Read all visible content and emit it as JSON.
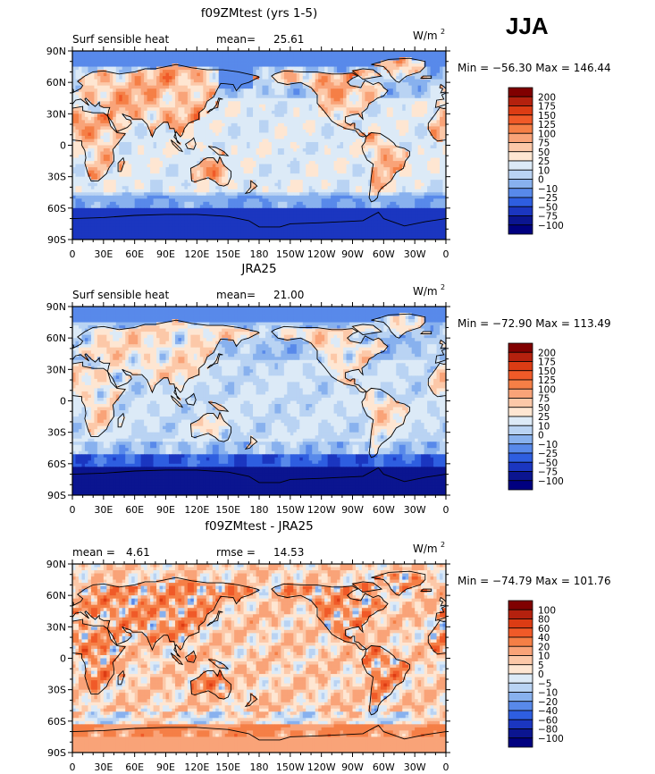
{
  "season": "JJA",
  "colors": {
    "land_outline": "#000000",
    "frame": "#000000"
  },
  "chart_data": [
    {
      "type": "heatmap",
      "title": "f09ZMtest (yrs 1-5)",
      "left_label": "Surf sensible heat",
      "stat1_label": "mean=",
      "stat1_value": "25.61",
      "units": "W/m",
      "units_sup": "2",
      "minmax": "Min = −56.30  Max = 146.44",
      "xticks": [
        "0",
        "30E",
        "60E",
        "90E",
        "120E",
        "150E",
        "180",
        "150W",
        "120W",
        "90W",
        "60W",
        "30W",
        "0"
      ],
      "yticks": [
        "90N",
        "60N",
        "30N",
        "0",
        "30S",
        "60S",
        "90S"
      ],
      "xlim": [
        0,
        360
      ],
      "ylim": [
        -90,
        90
      ],
      "colorbar_levels": [
        "200",
        "175",
        "150",
        "125",
        "100",
        "75",
        "50",
        "25",
        "10",
        "0",
        "−10",
        "−25",
        "−50",
        "−75",
        "−100"
      ],
      "colorbar_colors": [
        "#800000",
        "#b4210e",
        "#dc3c14",
        "#f05a28",
        "#f57f46",
        "#f9a378",
        "#fcc8a8",
        "#fee6d2",
        "#dceaf7",
        "#b9d3f3",
        "#88b1ee",
        "#5889ea",
        "#2e5ee0",
        "#1b36c0",
        "#0b1590",
        "#000080"
      ],
      "field": "model_sh"
    },
    {
      "type": "heatmap",
      "title": "JRA25",
      "left_label": "Surf sensible heat",
      "stat1_label": "mean=",
      "stat1_value": "21.00",
      "units": "W/m",
      "units_sup": "2",
      "minmax": "Min = −72.90  Max = 113.49",
      "xticks": [
        "0",
        "30E",
        "60E",
        "90E",
        "120E",
        "150E",
        "180",
        "150W",
        "120W",
        "90W",
        "60W",
        "30W",
        "0"
      ],
      "yticks": [
        "90N",
        "60N",
        "30N",
        "0",
        "30S",
        "60S",
        "90S"
      ],
      "xlim": [
        0,
        360
      ],
      "ylim": [
        -90,
        90
      ],
      "colorbar_levels": [
        "200",
        "175",
        "150",
        "125",
        "100",
        "75",
        "50",
        "25",
        "10",
        "0",
        "−10",
        "−25",
        "−50",
        "−75",
        "−100"
      ],
      "colorbar_colors": [
        "#800000",
        "#b4210e",
        "#dc3c14",
        "#f05a28",
        "#f57f46",
        "#f9a378",
        "#fcc8a8",
        "#fee6d2",
        "#dceaf7",
        "#b9d3f3",
        "#88b1ee",
        "#5889ea",
        "#2e5ee0",
        "#1b36c0",
        "#0b1590",
        "#000080"
      ],
      "field": "obs_sh"
    },
    {
      "type": "heatmap",
      "title": "f09ZMtest - JRA25",
      "left_label": "mean =",
      "left_value": "4.61",
      "stat1_label": "rmse =",
      "stat1_value": "14.53",
      "units": "W/m",
      "units_sup": "2",
      "minmax": "Min = −74.79  Max = 101.76",
      "xticks": [
        "0",
        "30E",
        "60E",
        "90E",
        "120E",
        "150E",
        "180",
        "150W",
        "120W",
        "90W",
        "60W",
        "30W",
        "0"
      ],
      "yticks": [
        "90N",
        "60N",
        "30N",
        "0",
        "30S",
        "60S",
        "90S"
      ],
      "xlim": [
        0,
        360
      ],
      "ylim": [
        -90,
        90
      ],
      "colorbar_levels": [
        "100",
        "80",
        "60",
        "40",
        "20",
        "10",
        "5",
        "0",
        "−5",
        "−10",
        "−20",
        "−40",
        "−60",
        "−80",
        "−100"
      ],
      "colorbar_colors": [
        "#800000",
        "#b4210e",
        "#dc3c14",
        "#f05a28",
        "#f57f46",
        "#f9a378",
        "#fcc8a8",
        "#fee6d2",
        "#dceaf7",
        "#b9d3f3",
        "#88b1ee",
        "#5889ea",
        "#2e5ee0",
        "#1b36c0",
        "#0b1590",
        "#000080"
      ],
      "field": "diff_sh"
    }
  ]
}
